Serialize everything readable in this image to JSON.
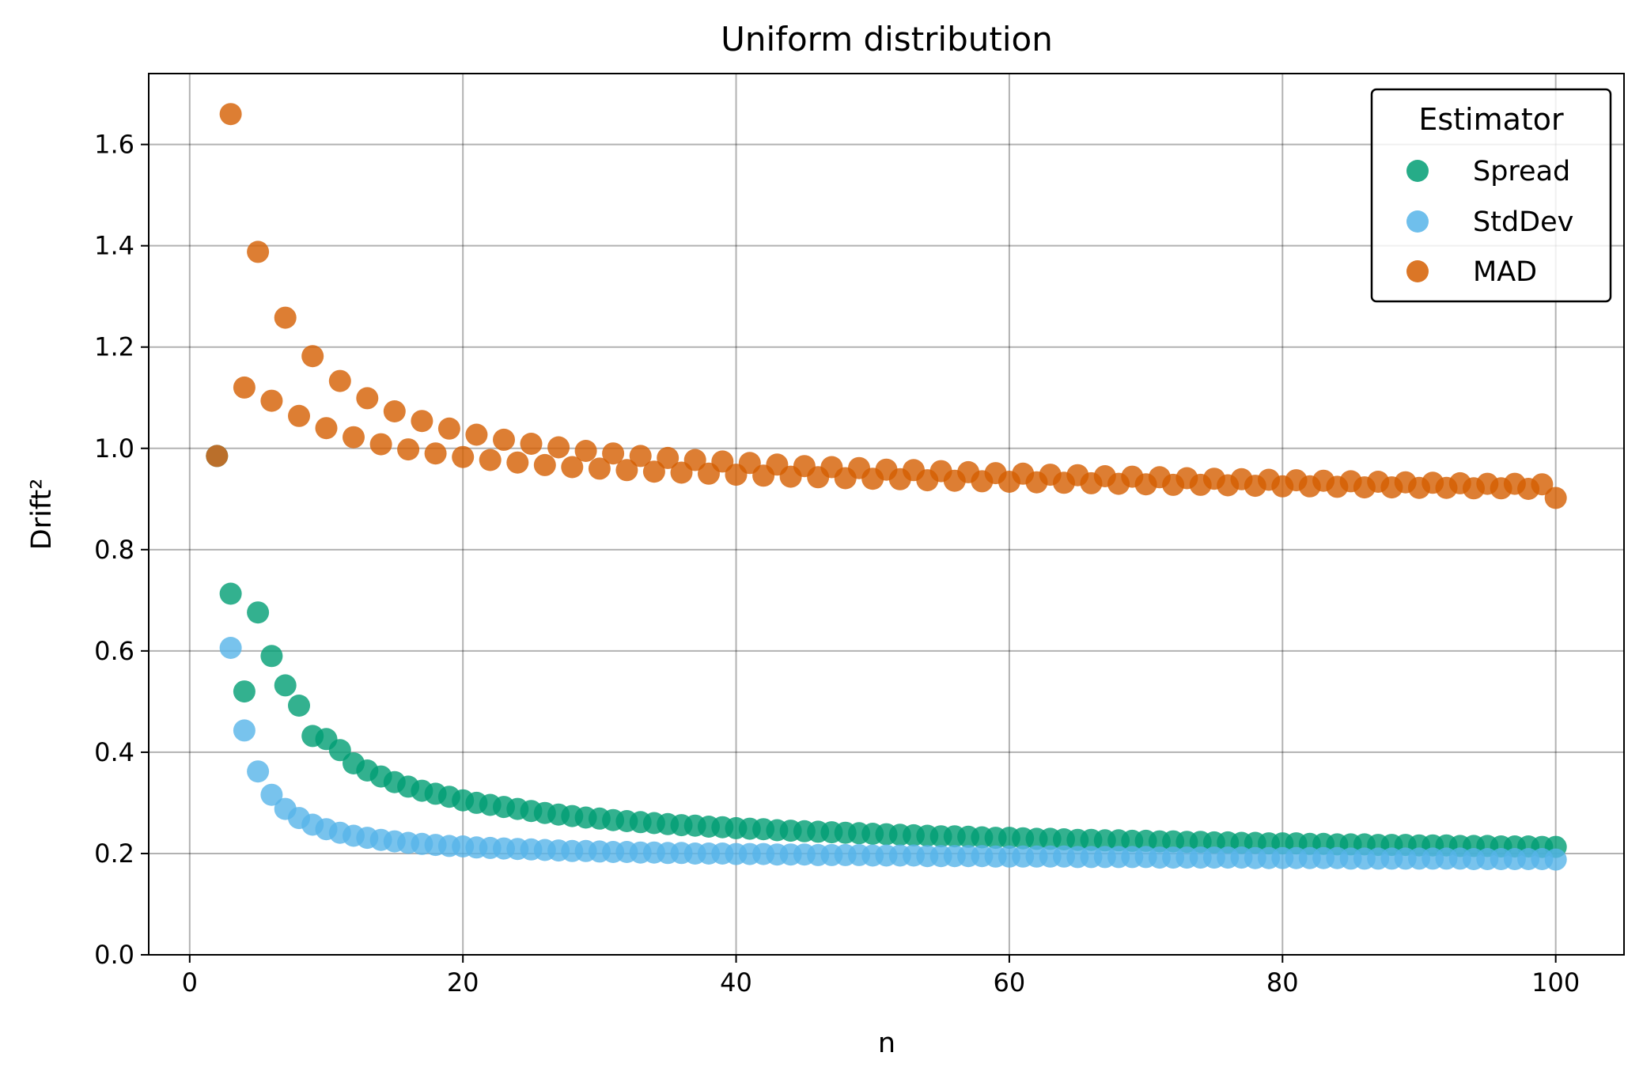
{
  "chart_data": {
    "type": "scatter",
    "title": "Uniform distribution",
    "xlabel": "n",
    "ylabel": "Drift²",
    "xlim": [
      -3,
      105
    ],
    "ylim": [
      0.0,
      1.74
    ],
    "xticks": [
      0,
      20,
      40,
      60,
      80,
      100
    ],
    "yticks": [
      0.0,
      0.2,
      0.4,
      0.6,
      0.8,
      1.0,
      1.2,
      1.4,
      1.6
    ],
    "xtick_labels": [
      "0",
      "20",
      "40",
      "60",
      "80",
      "100"
    ],
    "ytick_labels": [
      "0.0",
      "0.2",
      "0.4",
      "0.6",
      "0.8",
      "1.0",
      "1.2",
      "1.4",
      "1.6"
    ],
    "grid": true,
    "legend": {
      "title": "Estimator",
      "placement": "upper right"
    },
    "x": [
      2,
      3,
      4,
      5,
      6,
      7,
      8,
      9,
      10,
      11,
      12,
      13,
      14,
      15,
      16,
      17,
      18,
      19,
      20,
      21,
      22,
      23,
      24,
      25,
      26,
      27,
      28,
      29,
      30,
      31,
      32,
      33,
      34,
      35,
      36,
      37,
      38,
      39,
      40,
      41,
      42,
      43,
      44,
      45,
      46,
      47,
      48,
      49,
      50,
      51,
      52,
      53,
      54,
      55,
      56,
      57,
      58,
      59,
      60,
      61,
      62,
      63,
      64,
      65,
      66,
      67,
      68,
      69,
      70,
      71,
      72,
      73,
      74,
      75,
      76,
      77,
      78,
      79,
      80,
      81,
      82,
      83,
      84,
      85,
      86,
      87,
      88,
      89,
      90,
      91,
      92,
      93,
      94,
      95,
      96,
      97,
      98,
      99,
      100
    ],
    "series": [
      {
        "name": "Spread",
        "color": "#009E73",
        "values": [
          0.985,
          0.713,
          0.52,
          0.676,
          0.59,
          0.532,
          0.492,
          0.432,
          0.426,
          0.404,
          0.378,
          0.364,
          0.352,
          0.341,
          0.332,
          0.324,
          0.318,
          0.312,
          0.305,
          0.3,
          0.296,
          0.292,
          0.288,
          0.284,
          0.28,
          0.277,
          0.274,
          0.271,
          0.269,
          0.266,
          0.264,
          0.262,
          0.26,
          0.258,
          0.256,
          0.255,
          0.253,
          0.252,
          0.25,
          0.249,
          0.248,
          0.246,
          0.245,
          0.244,
          0.243,
          0.242,
          0.241,
          0.24,
          0.239,
          0.238,
          0.237,
          0.236,
          0.235,
          0.234,
          0.234,
          0.233,
          0.232,
          0.231,
          0.231,
          0.23,
          0.229,
          0.229,
          0.228,
          0.227,
          0.227,
          0.226,
          0.226,
          0.225,
          0.225,
          0.224,
          0.224,
          0.223,
          0.223,
          0.222,
          0.222,
          0.221,
          0.221,
          0.22,
          0.22,
          0.22,
          0.219,
          0.219,
          0.218,
          0.218,
          0.218,
          0.217,
          0.217,
          0.217,
          0.216,
          0.216,
          0.216,
          0.215,
          0.215,
          0.215,
          0.214,
          0.214,
          0.214,
          0.213,
          0.213
        ]
      },
      {
        "name": "StdDev",
        "color": "#56B4E9",
        "values": [
          0.985,
          0.606,
          0.443,
          0.362,
          0.316,
          0.288,
          0.27,
          0.257,
          0.248,
          0.241,
          0.235,
          0.231,
          0.227,
          0.224,
          0.221,
          0.219,
          0.217,
          0.215,
          0.214,
          0.212,
          0.211,
          0.21,
          0.209,
          0.208,
          0.207,
          0.206,
          0.205,
          0.205,
          0.204,
          0.203,
          0.203,
          0.202,
          0.202,
          0.201,
          0.201,
          0.2,
          0.2,
          0.2,
          0.199,
          0.199,
          0.199,
          0.198,
          0.198,
          0.198,
          0.197,
          0.197,
          0.197,
          0.197,
          0.196,
          0.196,
          0.196,
          0.196,
          0.195,
          0.195,
          0.195,
          0.195,
          0.195,
          0.194,
          0.194,
          0.194,
          0.194,
          0.194,
          0.194,
          0.193,
          0.193,
          0.193,
          0.193,
          0.193,
          0.193,
          0.192,
          0.192,
          0.192,
          0.192,
          0.192,
          0.192,
          0.192,
          0.191,
          0.191,
          0.191,
          0.191,
          0.191,
          0.191,
          0.191,
          0.19,
          0.19,
          0.19,
          0.19,
          0.19,
          0.19,
          0.19,
          0.19,
          0.19,
          0.189,
          0.189,
          0.189,
          0.189,
          0.189,
          0.189,
          0.188
        ]
      },
      {
        "name": "MAD",
        "color": "#D55E00",
        "values": [
          0.985,
          1.66,
          1.12,
          1.388,
          1.094,
          1.258,
          1.064,
          1.182,
          1.04,
          1.133,
          1.022,
          1.099,
          1.008,
          1.073,
          0.998,
          1.054,
          0.99,
          1.039,
          0.983,
          1.027,
          0.977,
          1.017,
          0.972,
          1.009,
          0.967,
          1.002,
          0.963,
          0.995,
          0.96,
          0.99,
          0.957,
          0.985,
          0.954,
          0.981,
          0.952,
          0.977,
          0.95,
          0.974,
          0.948,
          0.971,
          0.946,
          0.968,
          0.944,
          0.965,
          0.943,
          0.963,
          0.941,
          0.961,
          0.94,
          0.958,
          0.939,
          0.957,
          0.937,
          0.955,
          0.936,
          0.953,
          0.935,
          0.951,
          0.934,
          0.95,
          0.933,
          0.948,
          0.932,
          0.947,
          0.931,
          0.945,
          0.93,
          0.944,
          0.929,
          0.943,
          0.928,
          0.941,
          0.928,
          0.94,
          0.927,
          0.939,
          0.926,
          0.938,
          0.925,
          0.937,
          0.925,
          0.936,
          0.924,
          0.935,
          0.923,
          0.934,
          0.923,
          0.933,
          0.922,
          0.932,
          0.922,
          0.931,
          0.921,
          0.93,
          0.921,
          0.93,
          0.92,
          0.929,
          0.902
        ]
      }
    ]
  }
}
